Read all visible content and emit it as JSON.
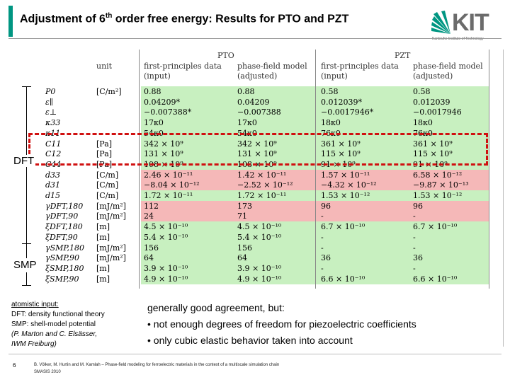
{
  "title_prefix": "Adjustment of 6",
  "title_sup": "th",
  "title_suffix": " order free energy: Results for PTO and PZT",
  "logo": {
    "text": "KIT",
    "subtitle": "Karlsruhe Institute of Technology"
  },
  "colors": {
    "accent": "#009682",
    "green_row": "#c8f0c0",
    "red_row": "#f5b8b8",
    "red_box": "#d01010"
  },
  "table": {
    "groups": [
      "PTO",
      "PZT"
    ],
    "headers": [
      "unit",
      "first-principles data",
      "phase-field model",
      "first-principles data",
      "phase-field model"
    ],
    "subheaders": [
      "(input)",
      "(adjusted)",
      "(input)",
      "(adjusted)"
    ],
    "rows": [
      [
        "P0",
        "[C/m²]",
        "0.88",
        "0.88",
        "0.58",
        "0.58"
      ],
      [
        "ε∥",
        "",
        "0.04209*",
        "0.04209",
        "0.012039*",
        "0.012039"
      ],
      [
        "ε⊥",
        "",
        "−0.007388*",
        "−0.007388",
        "−0.0017946*",
        "−0.0017946"
      ],
      [
        "κ33",
        "",
        "17κ0",
        "17κ0",
        "18κ0",
        "18κ0"
      ],
      [
        "κ11",
        "",
        "54κ0",
        "54κ0",
        "76κ0",
        "76κ0"
      ],
      [
        "C11",
        "[Pa]",
        "342 × 10⁹",
        "342 × 10⁹",
        "361 × 10⁹",
        "361 × 10⁹"
      ],
      [
        "C12",
        "[Pa]",
        "131 × 10⁹",
        "131 × 10⁹",
        "115 × 10⁹",
        "115 × 10⁹"
      ],
      [
        "C44",
        "[Pa]",
        "108 × 10⁹",
        "108 × 10⁹",
        "91 × 10⁹",
        "91 × 10⁹"
      ],
      [
        "d33",
        "[C/m]",
        "2.46 × 10⁻¹¹",
        "1.42 × 10⁻¹¹",
        "1.57 × 10⁻¹¹",
        "6.58 × 10⁻¹²"
      ],
      [
        "d31",
        "[C/m]",
        "−8.04 × 10⁻¹²",
        "−2.52 × 10⁻¹²",
        "−4.32 × 10⁻¹²",
        "−9.87 × 10⁻¹³"
      ],
      [
        "d15",
        "[C/m]",
        "1.72 × 10⁻¹¹",
        "1.72 × 10⁻¹¹",
        "1.53 × 10⁻¹²",
        "1.53 × 10⁻¹²"
      ],
      [
        "γDFT,180",
        "[mJ/m²]",
        "112",
        "173",
        "96",
        "96"
      ],
      [
        "γDFT,90",
        "[mJ/m²]",
        "24",
        "71",
        "-",
        "-"
      ],
      [
        "ξDFT,180",
        "[m]",
        "4.5 × 10⁻¹⁰",
        "4.5 × 10⁻¹⁰",
        "6.7 × 10⁻¹⁰",
        "6.7 × 10⁻¹⁰"
      ],
      [
        "ξDFT,90",
        "[m]",
        "5.4 × 10⁻¹⁰",
        "5.4 × 10⁻¹⁰",
        "-",
        "-"
      ],
      [
        "γSMP,180",
        "[mJ/m²]",
        "156",
        "156",
        "-",
        "-"
      ],
      [
        "γSMP,90",
        "[mJ/m²]",
        "64",
        "64",
        "36",
        "36"
      ],
      [
        "ξSMP,180",
        "[m]",
        "3.9 × 10⁻¹⁰",
        "3.9 × 10⁻¹⁰",
        "-",
        "-"
      ],
      [
        "ξSMP,90",
        "[m]",
        "4.9 × 10⁻¹⁰",
        "4.9 × 10⁻¹⁰",
        "6.6 × 10⁻¹⁰",
        "6.6 × 10⁻¹⁰"
      ]
    ],
    "row_colors": [
      "green",
      "green",
      "green",
      "green",
      "green",
      "green",
      "green",
      "green",
      "red",
      "red",
      "green",
      "red",
      "red",
      "green",
      "green",
      "green",
      "green",
      "green",
      "green"
    ]
  },
  "side_labels": {
    "dft": "DFT",
    "smp": "SMP"
  },
  "notes": {
    "heading": "atomistic input:",
    "dft": "DFT: density functional theory",
    "smp": "SMP: shell-model potential",
    "credit_1": "(P. Marton and C. Elsässer,",
    "credit_2": "IWM Freiburg)"
  },
  "summary": {
    "lead": "generally good agreement, but:",
    "bullets": [
      "not enough degrees of freedom for piezoelectric coefficients",
      "only cubic elastic behavior taken into account"
    ]
  },
  "page_number": "6",
  "footer": {
    "line1": "B. Völker, M. Hurtin and M. Kamlah – Phase-field modeling for ferroelectric materials in the context of a multiscale simulation chain",
    "line2": "SMASIS 2010"
  }
}
